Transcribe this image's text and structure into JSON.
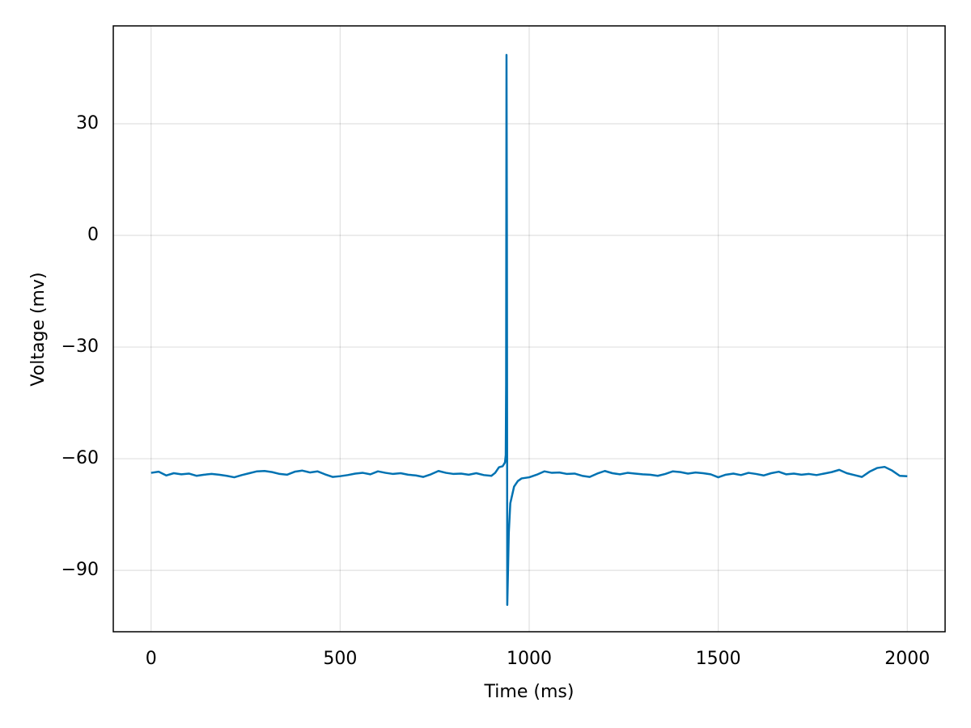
{
  "chart_data": {
    "type": "line",
    "xlabel": "Time (ms)",
    "ylabel": "Voltage (mv)",
    "color": "#0072b2",
    "grid": true,
    "xlim": [
      -100,
      2100
    ],
    "xticks": [
      0,
      500,
      1000,
      1500,
      2000
    ],
    "ylim": [
      -106.5,
      56.3
    ],
    "yticks": [
      {
        "value": -90,
        "label": "−90"
      },
      {
        "value": -60,
        "label": "−60"
      },
      {
        "value": -30,
        "label": "−30"
      },
      0,
      30
    ],
    "x": [
      0,
      20,
      40,
      60,
      80,
      100,
      120,
      140,
      160,
      180,
      200,
      220,
      240,
      260,
      280,
      300,
      320,
      340,
      360,
      380,
      400,
      420,
      440,
      460,
      480,
      500,
      520,
      540,
      560,
      580,
      600,
      620,
      640,
      660,
      680,
      700,
      720,
      740,
      760,
      780,
      800,
      820,
      840,
      860,
      880,
      900,
      910,
      920,
      930,
      936,
      938,
      939,
      940,
      941,
      942,
      944,
      946,
      950,
      960,
      970,
      980,
      1000,
      1020,
      1040,
      1060,
      1080,
      1100,
      1120,
      1140,
      1160,
      1180,
      1200,
      1220,
      1240,
      1260,
      1280,
      1300,
      1320,
      1340,
      1360,
      1380,
      1400,
      1420,
      1440,
      1460,
      1480,
      1500,
      1520,
      1540,
      1560,
      1580,
      1600,
      1620,
      1640,
      1660,
      1680,
      1700,
      1720,
      1740,
      1760,
      1780,
      1800,
      1820,
      1840,
      1860,
      1880,
      1900,
      1920,
      1940,
      1960,
      1980,
      2000
    ],
    "values": [
      -63.8,
      -63.5,
      -64.5,
      -63.9,
      -64.2,
      -64.0,
      -64.6,
      -64.3,
      -64.1,
      -64.3,
      -64.6,
      -65.0,
      -64.4,
      -63.9,
      -63.4,
      -63.3,
      -63.6,
      -64.1,
      -64.3,
      -63.5,
      -63.2,
      -63.7,
      -63.4,
      -64.2,
      -64.9,
      -64.7,
      -64.4,
      -64.0,
      -63.8,
      -64.2,
      -63.4,
      -63.8,
      -64.1,
      -63.9,
      -64.3,
      -64.5,
      -64.9,
      -64.2,
      -63.3,
      -63.8,
      -64.1,
      -64.0,
      -64.3,
      -63.9,
      -64.4,
      -64.6,
      -63.8,
      -62.3,
      -62.0,
      -61.0,
      -59.0,
      -40.0,
      48.5,
      0.0,
      -99.3,
      -90.0,
      -80.0,
      -72.0,
      -67.5,
      -66.0,
      -65.3,
      -65.0,
      -64.3,
      -63.4,
      -63.8,
      -63.7,
      -64.1,
      -64.0,
      -64.6,
      -64.9,
      -64.0,
      -63.3,
      -63.9,
      -64.2,
      -63.8,
      -64.0,
      -64.2,
      -64.3,
      -64.6,
      -64.1,
      -63.4,
      -63.6,
      -64.0,
      -63.7,
      -63.9,
      -64.2,
      -65.0,
      -64.3,
      -64.0,
      -64.4,
      -63.8,
      -64.1,
      -64.5,
      -63.9,
      -63.5,
      -64.2,
      -64.0,
      -64.3,
      -64.1,
      -64.4,
      -64.0,
      -63.6,
      -63.0,
      -63.9,
      -64.4,
      -64.9,
      -63.5,
      -62.5,
      -62.2,
      -63.2,
      -64.6,
      -64.7
    ]
  }
}
